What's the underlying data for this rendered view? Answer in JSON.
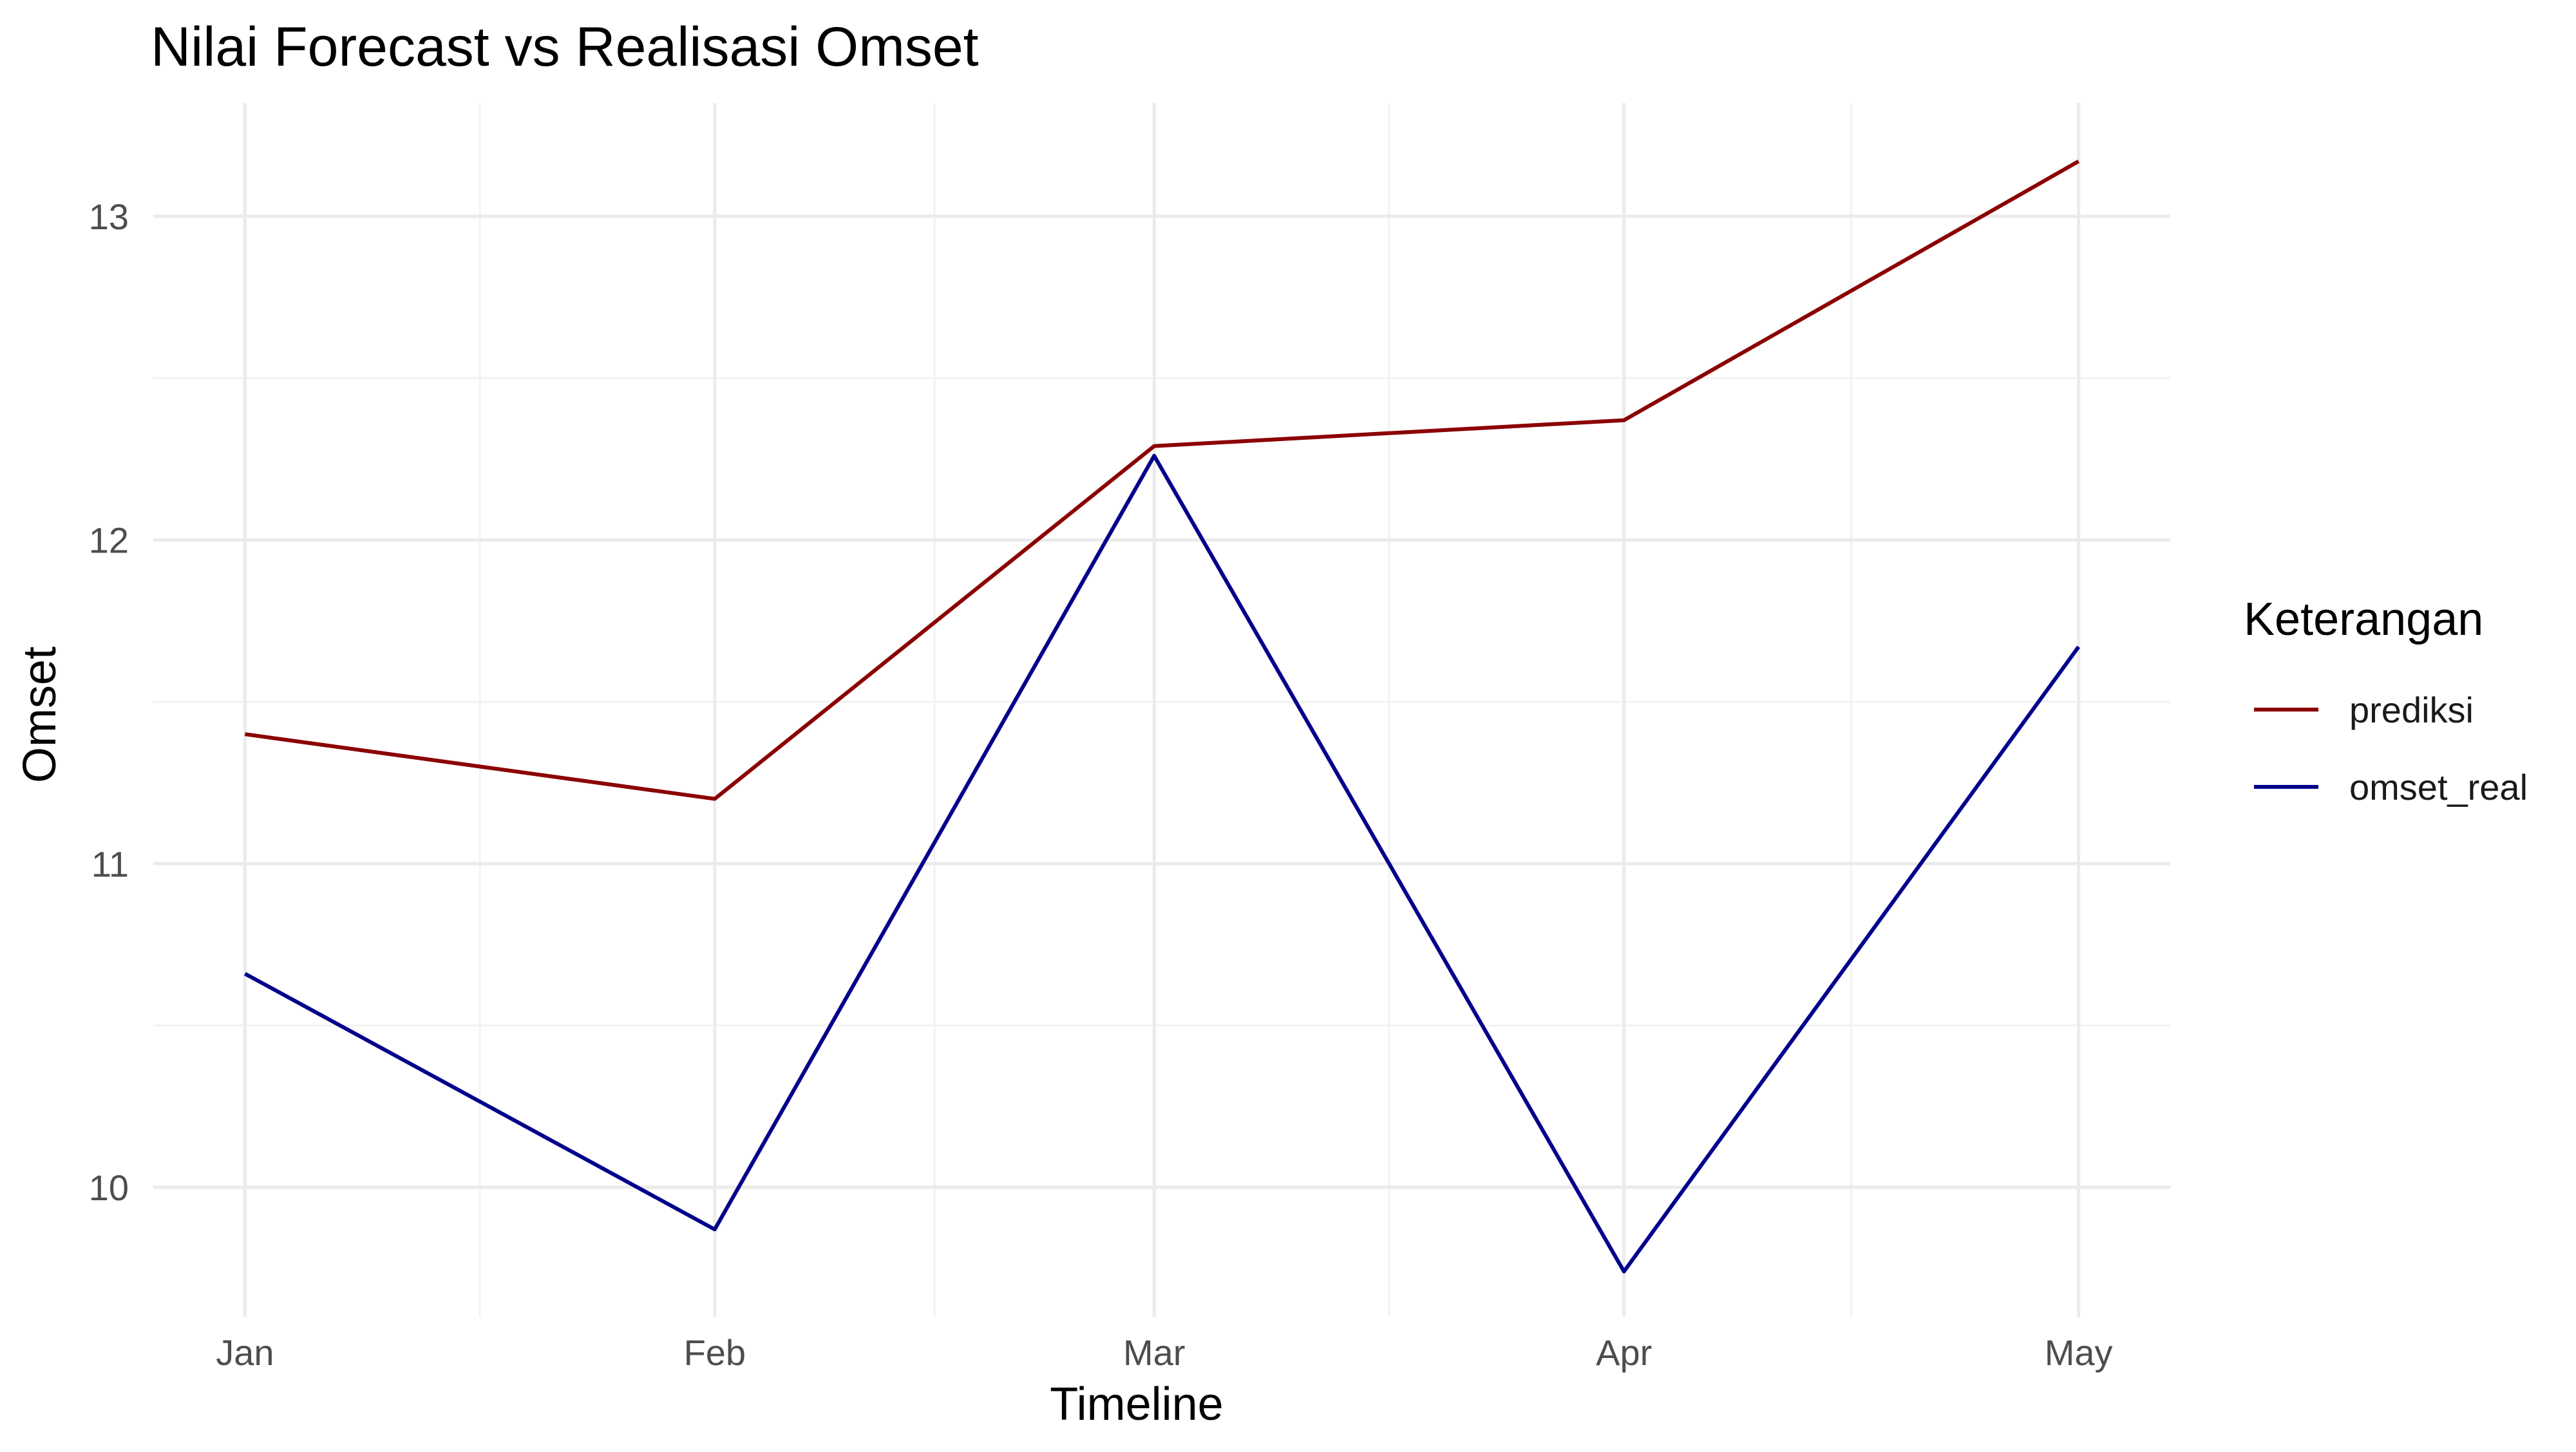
{
  "chart_data": {
    "type": "line",
    "title": "Nilai Forecast vs Realisasi Omset",
    "xlabel": "Timeline",
    "ylabel": "Omset",
    "categories": [
      "Jan",
      "Feb",
      "Mar",
      "Apr",
      "May"
    ],
    "x_dates": [
      "2024-01-01",
      "2024-02-01",
      "2024-03-01",
      "2024-04-01",
      "2024-05-01"
    ],
    "y_ticks": [
      10,
      11,
      12,
      13
    ],
    "ylim": [
      9.6,
      13.35
    ],
    "grid": true,
    "legend": {
      "title": "Keterangan",
      "placement": "right"
    },
    "series": [
      {
        "name": "prediksi",
        "color": "#8b0000",
        "values": [
          11.4,
          11.2,
          12.29,
          12.37,
          13.17
        ]
      },
      {
        "name": "omset_real",
        "color": "#00008b",
        "values": [
          10.66,
          9.87,
          12.26,
          9.74,
          11.67
        ]
      }
    ]
  }
}
